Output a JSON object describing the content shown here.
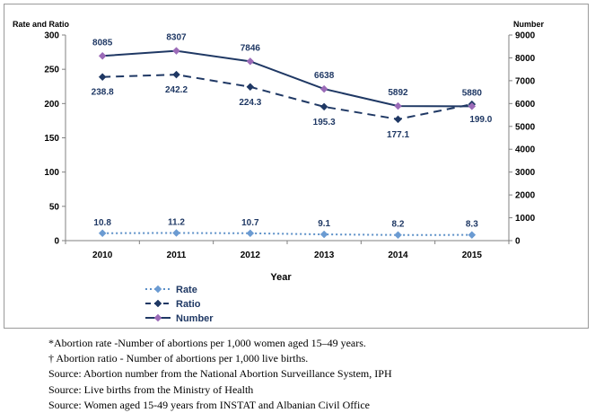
{
  "chart_data": {
    "type": "line",
    "title": "",
    "left_axis_label": "Rate and Ratio",
    "right_axis_label": "Number",
    "xlabel": "Year",
    "categories": [
      "2010",
      "2011",
      "2012",
      "2013",
      "2014",
      "2015"
    ],
    "left_ylim": [
      0,
      300
    ],
    "left_ticks": [
      "0",
      "50",
      "100",
      "150",
      "200",
      "250",
      "300"
    ],
    "right_ylim": [
      0,
      9000
    ],
    "right_ticks": [
      "0",
      "1000",
      "2000",
      "3000",
      "4000",
      "5000",
      "6000",
      "7000",
      "8000",
      "9000"
    ],
    "grid": false,
    "legend_position": "bottom-left",
    "series": [
      {
        "name": "Rate",
        "axis": "left",
        "style": "dotted",
        "color": "#5b8fc7",
        "marker_color": "#6b9bd2",
        "values": [
          10.8,
          11.2,
          10.7,
          9.1,
          8.2,
          8.3
        ],
        "labels": [
          "10.8",
          "11.2",
          "10.7",
          "9.1",
          "8.2",
          "8.3"
        ]
      },
      {
        "name": "Ratio",
        "axis": "left",
        "style": "dashed",
        "color": "#1f3864",
        "marker_color": "#1f3864",
        "values": [
          238.8,
          242.2,
          224.3,
          195.3,
          177.1,
          199.0
        ],
        "labels": [
          "238.8",
          "242.2",
          "224.3",
          "195.3",
          "177.1",
          "199.0"
        ]
      },
      {
        "name": "Number",
        "axis": "right",
        "style": "solid",
        "color": "#1f3864",
        "marker_color": "#9b6bb8",
        "values": [
          8085,
          8307,
          7846,
          6638,
          5892,
          5880
        ],
        "labels": [
          "8085",
          "8307",
          "7846",
          "6638",
          "5892",
          "5880"
        ]
      }
    ]
  },
  "notes": [
    "*Abortion rate -Number of abortions per 1,000 women aged 15–49 years.",
    "† Abortion ratio - Number of abortions per 1,000 live births.",
    "Source: Abortion number from the National Abortion Surveillance System, IPH",
    "Source: Live births from the Ministry of Health",
    "Source: Women aged 15-49 years from INSTAT and Albanian Civil Office"
  ]
}
